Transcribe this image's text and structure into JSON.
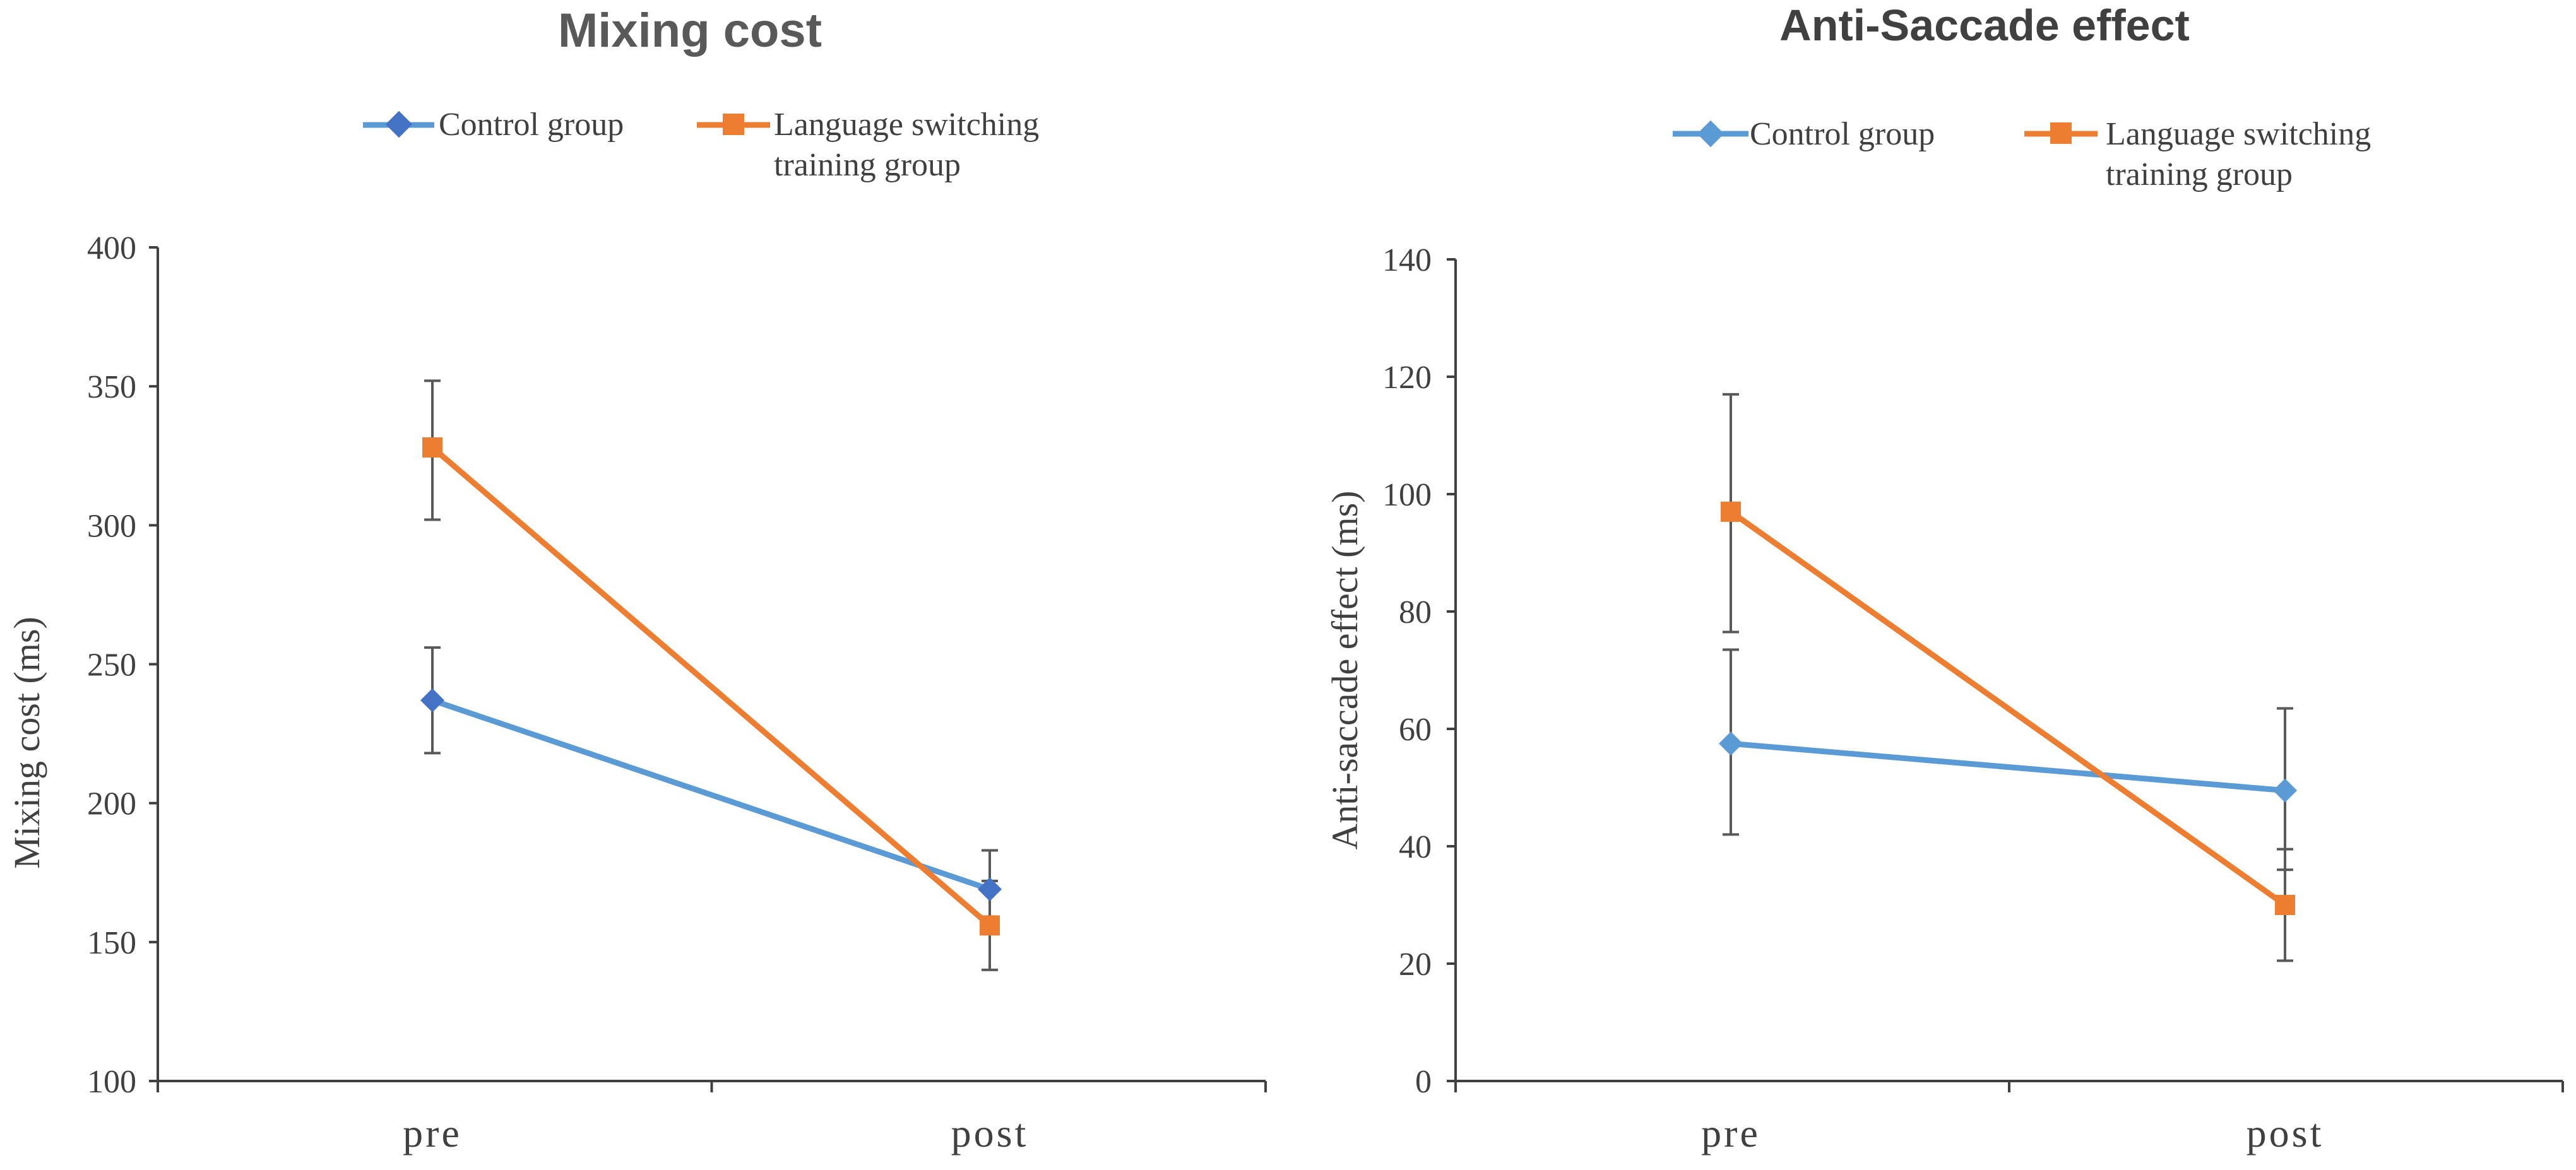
{
  "chart_data": [
    {
      "type": "line",
      "title": "Mixing cost",
      "xlabel": "",
      "ylabel": "Mixing cost (ms)",
      "categories": [
        "pre",
        "post"
      ],
      "ylim": [
        100,
        400
      ],
      "yticks": [
        "100",
        "150",
        "200",
        "250",
        "300",
        "350",
        "400"
      ],
      "legend_position": "top",
      "series": [
        {
          "name": "Control group",
          "marker": "diamond",
          "color": "#5B9BD5",
          "marker_color": "#4472C4",
          "values": [
            237,
            169
          ],
          "error": [
            [
              218,
              256
            ],
            [
              155,
              183
            ]
          ]
        },
        {
          "name": "Language switching",
          "name_line2": "training group",
          "marker": "square",
          "color": "#ED7D31",
          "marker_color": "#ED7D31",
          "values": [
            328,
            156
          ],
          "error": [
            [
              302,
              352
            ],
            [
              140,
              172
            ]
          ]
        }
      ]
    },
    {
      "type": "line",
      "title": "Anti-Saccade effect",
      "xlabel": "",
      "ylabel": "Anti-saccade effect (ms)",
      "categories": [
        "pre",
        "post"
      ],
      "ylim": [
        0,
        140
      ],
      "yticks": [
        "0",
        "20",
        "40",
        "60",
        "80",
        "100",
        "120",
        "140"
      ],
      "legend_position": "top",
      "series": [
        {
          "name": "Control group",
          "marker": "diamond",
          "color": "#5B9BD5",
          "marker_color": "#5B9BD5",
          "values": [
            57.5,
            49.5
          ],
          "error": [
            [
              42,
              73.5
            ],
            [
              36,
              63.5
            ]
          ]
        },
        {
          "name": "Language switching",
          "name_line2": "training group",
          "marker": "square",
          "color": "#ED7D31",
          "marker_color": "#ED7D31",
          "values": [
            97,
            30
          ],
          "error": [
            [
              76.5,
              117
            ],
            [
              20.5,
              39.5
            ]
          ]
        }
      ]
    }
  ]
}
